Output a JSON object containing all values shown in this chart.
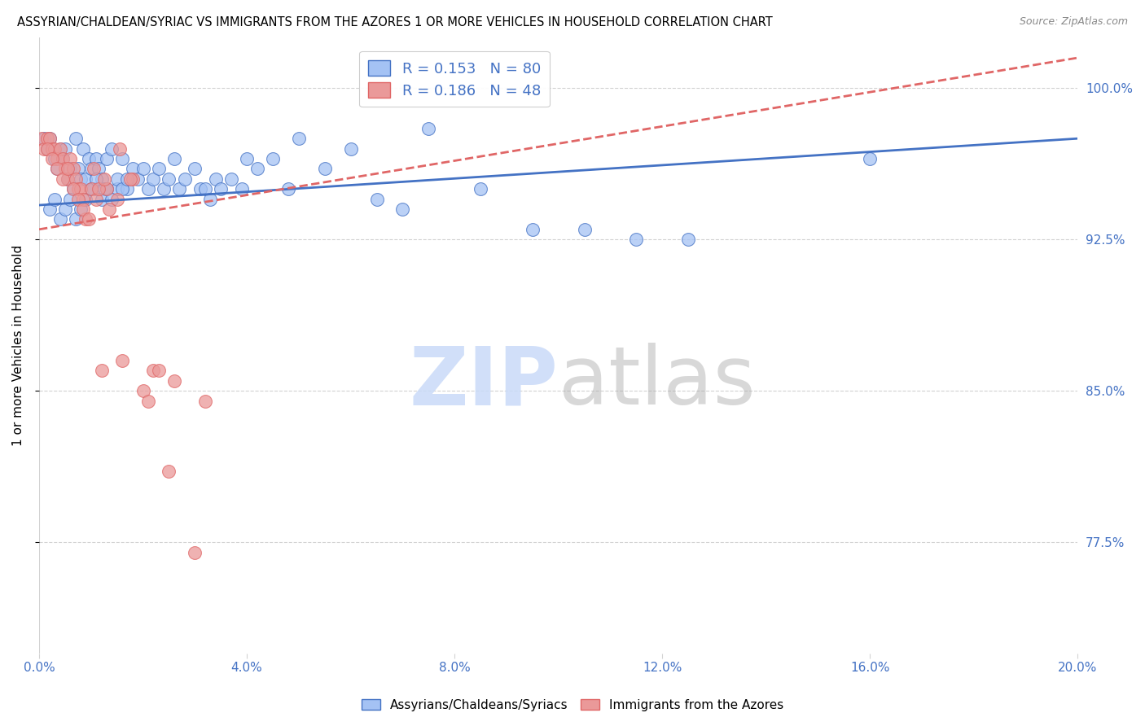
{
  "title": "ASSYRIAN/CHALDEAN/SYRIAC VS IMMIGRANTS FROM THE AZORES 1 OR MORE VEHICLES IN HOUSEHOLD CORRELATION CHART",
  "source": "Source: ZipAtlas.com",
  "ylabel": "1 or more Vehicles in Household",
  "legend_label1": "Assyrians/Chaldeans/Syriacs",
  "legend_label2": "Immigrants from the Azores",
  "R1": 0.153,
  "N1": 80,
  "R2": 0.186,
  "N2": 48,
  "color1": "#a4c2f4",
  "color2": "#ea9999",
  "trendline1_color": "#4472c4",
  "trendline2_color": "#e06666",
  "right_ytick_labels": [
    "77.5%",
    "85.0%",
    "92.5%",
    "100.0%"
  ],
  "right_yticks": [
    77.5,
    85.0,
    92.5,
    100.0
  ],
  "xmin": 0.0,
  "xmax": 20.0,
  "ymin": 72.0,
  "ymax": 102.5,
  "watermark_zip_color": "#c9daf8",
  "watermark_atlas_color": "#aaaaaa",
  "blue_x": [
    0.1,
    0.15,
    0.2,
    0.25,
    0.3,
    0.35,
    0.4,
    0.45,
    0.5,
    0.55,
    0.6,
    0.65,
    0.7,
    0.75,
    0.8,
    0.85,
    0.9,
    0.95,
    1.0,
    1.05,
    1.1,
    1.15,
    1.2,
    1.25,
    1.3,
    1.4,
    1.5,
    1.6,
    1.7,
    1.8,
    1.9,
    2.0,
    2.1,
    2.2,
    2.3,
    2.4,
    2.5,
    2.6,
    2.7,
    2.8,
    3.0,
    3.1,
    3.2,
    3.3,
    3.4,
    3.5,
    3.7,
    3.9,
    4.0,
    4.2,
    4.5,
    4.8,
    5.0,
    5.5,
    6.0,
    6.5,
    7.0,
    7.5,
    8.5,
    9.5,
    10.5,
    11.5,
    12.5,
    16.0,
    0.2,
    0.3,
    0.4,
    0.5,
    0.6,
    0.7,
    0.8,
    0.9,
    1.0,
    1.1,
    1.2,
    1.3,
    1.4,
    1.5,
    1.6,
    1.7
  ],
  "blue_y": [
    97.5,
    97.0,
    97.5,
    97.0,
    96.5,
    96.0,
    97.0,
    96.5,
    97.0,
    95.5,
    96.0,
    95.0,
    97.5,
    96.0,
    95.5,
    97.0,
    95.5,
    96.5,
    96.0,
    95.0,
    96.5,
    96.0,
    95.5,
    95.0,
    96.5,
    97.0,
    95.0,
    96.5,
    95.0,
    96.0,
    95.5,
    96.0,
    95.0,
    95.5,
    96.0,
    95.0,
    95.5,
    96.5,
    95.0,
    95.5,
    96.0,
    95.0,
    95.0,
    94.5,
    95.5,
    95.0,
    95.5,
    95.0,
    96.5,
    96.0,
    96.5,
    95.0,
    97.5,
    96.0,
    97.0,
    94.5,
    94.0,
    98.0,
    95.0,
    93.0,
    93.0,
    92.5,
    92.5,
    96.5,
    94.0,
    94.5,
    93.5,
    94.0,
    94.5,
    93.5,
    94.0,
    94.5,
    95.0,
    95.5,
    94.5,
    95.0,
    94.5,
    95.5,
    95.0,
    95.5
  ],
  "pink_x": [
    0.05,
    0.1,
    0.15,
    0.2,
    0.25,
    0.3,
    0.35,
    0.4,
    0.45,
    0.5,
    0.55,
    0.6,
    0.65,
    0.7,
    0.75,
    0.8,
    0.85,
    0.9,
    1.0,
    1.1,
    1.2,
    1.3,
    1.5,
    1.6,
    1.8,
    2.0,
    2.2,
    2.5,
    3.0,
    0.15,
    0.25,
    0.35,
    0.45,
    0.55,
    0.65,
    0.75,
    0.85,
    0.95,
    1.05,
    1.15,
    1.25,
    1.35,
    1.55,
    1.75,
    2.1,
    2.3,
    2.6,
    3.2
  ],
  "pink_y": [
    97.5,
    97.0,
    97.5,
    97.5,
    97.0,
    97.0,
    96.5,
    97.0,
    96.5,
    96.0,
    95.5,
    96.5,
    96.0,
    95.5,
    95.0,
    95.0,
    94.5,
    93.5,
    95.0,
    94.5,
    86.0,
    95.0,
    94.5,
    86.5,
    95.5,
    85.0,
    86.0,
    81.0,
    77.0,
    97.0,
    96.5,
    96.0,
    95.5,
    96.0,
    95.0,
    94.5,
    94.0,
    93.5,
    96.0,
    95.0,
    95.5,
    94.0,
    97.0,
    95.5,
    84.5,
    86.0,
    85.5,
    84.5
  ]
}
